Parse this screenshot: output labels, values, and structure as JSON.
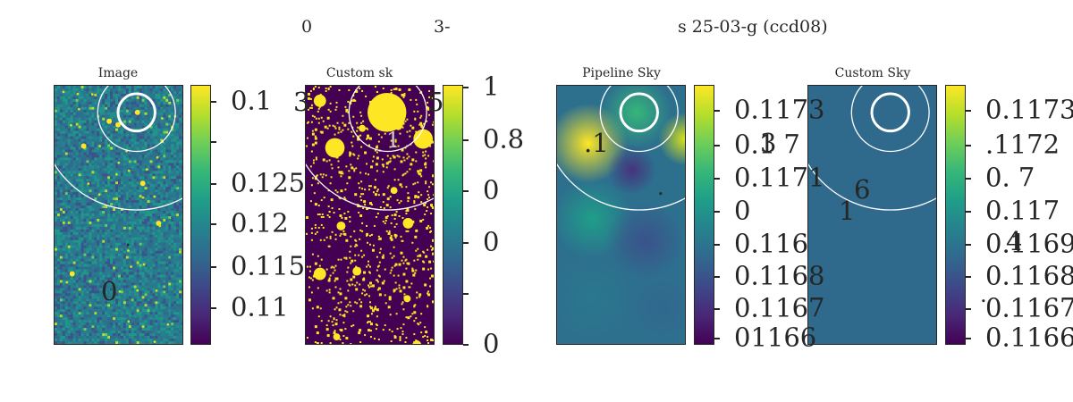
{
  "suptitle": {
    "left": "0",
    "mid": "3-",
    "right": "s    25-03-g (ccd08)"
  },
  "chart_data": [
    {
      "type": "heatmap",
      "title": "Image",
      "colormap": "viridis",
      "colorbar_ticks": [
        "0.1",
        "0.125",
        "0.12",
        "0.115",
        "0.11"
      ],
      "annotations": [
        "0",
        "."
      ]
    },
    {
      "type": "heatmap",
      "title": "Custom sk",
      "colormap": "viridis",
      "colorbar_ticks": [
        "1",
        "0.8",
        "0",
        "0",
        "0"
      ],
      "annotations": [
        "3",
        "5",
        "1"
      ]
    },
    {
      "type": "heatmap",
      "title": "Pipeline Sky",
      "colormap": "viridis",
      "colorbar_ticks": [
        "0.1173",
        "0.1 7",
        "0.1171",
        "0",
        "0.116",
        "0.1168",
        "0.1167",
        "01166"
      ],
      "annotations": [
        ".1",
        "3",
        "."
      ]
    },
    {
      "type": "heatmap",
      "title": "Custom Sky",
      "colormap": "viridis",
      "colorbar_ticks": [
        "0.1173",
        ".1172",
        "0.   7",
        "0.117",
        "0.1169",
        "0.1168",
        "0.1167",
        "0.1166"
      ],
      "annotations": [
        "6",
        "1",
        "4",
        "."
      ]
    }
  ]
}
